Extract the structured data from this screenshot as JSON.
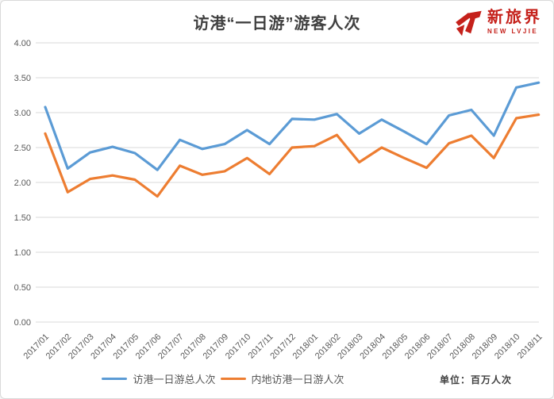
{
  "header": {
    "logo": {
      "name": "新旅界",
      "subtitle": "NEW LVJIE",
      "color": "#c5211b"
    }
  },
  "footer": {
    "unit_label": "单位：百万人次"
  },
  "colors": {
    "series_blue": "#5B9BD5",
    "series_orange": "#ED7D31",
    "gridline": "#D9D9D9",
    "axis_text": "#595959",
    "title_text": "#404040",
    "logo_red": "#c5211b"
  },
  "chart_data": {
    "type": "line",
    "title": "访港“一日游”游客人次",
    "unit": "百万人次",
    "categories": [
      "2017/01",
      "2017/02",
      "2017/03",
      "2017/04",
      "2017/05",
      "2017/06",
      "2017/07",
      "2017/08",
      "2017/09",
      "2017/10",
      "2017/11",
      "2017/12",
      "2018/01",
      "2018/02",
      "2018/03",
      "2018/04",
      "2018/05",
      "2018/06",
      "2018/07",
      "2018/08",
      "2018/09",
      "2018/10",
      "2018/11"
    ],
    "series": [
      {
        "name": "访港一日游总人次",
        "color": "#5B9BD5",
        "values": [
          3.08,
          2.2,
          2.43,
          2.51,
          2.42,
          2.18,
          2.61,
          2.48,
          2.55,
          2.75,
          2.55,
          2.91,
          2.9,
          2.98,
          2.7,
          2.9,
          2.73,
          2.55,
          2.96,
          3.04,
          2.67,
          3.36,
          3.43
        ]
      },
      {
        "name": "内地访港一日游人次",
        "color": "#ED7D31",
        "values": [
          2.7,
          1.86,
          2.05,
          2.1,
          2.04,
          1.8,
          2.24,
          2.11,
          2.16,
          2.35,
          2.12,
          2.5,
          2.52,
          2.68,
          2.29,
          2.5,
          2.35,
          2.21,
          2.56,
          2.67,
          2.35,
          2.92,
          2.97
        ]
      }
    ],
    "ylim": [
      0,
      4
    ],
    "ytick_step": 0.5,
    "ytick_format": "0.00",
    "xlabel": "",
    "ylabel": "",
    "grid": true,
    "legend_position": "bottom",
    "x_label_rotation": -45
  }
}
